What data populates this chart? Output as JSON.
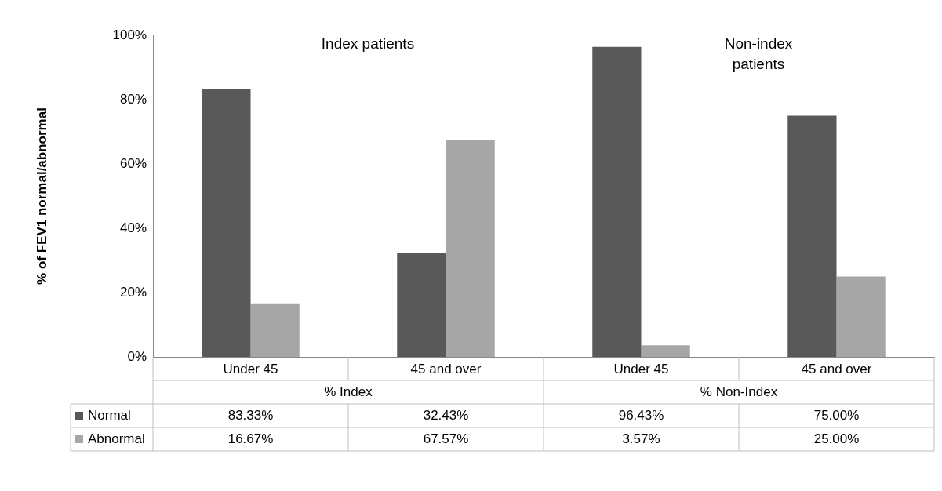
{
  "chart_data": {
    "type": "bar",
    "ylabel": "% of FEV1 normal/abnormal",
    "categories": [
      "Under 45",
      "45 and over",
      "Under 45",
      "45 and over"
    ],
    "series": [
      {
        "name": "Normal",
        "color": "#595959",
        "values": [
          83.33,
          32.43,
          96.43,
          75.0
        ],
        "value_labels": [
          "83.33%",
          "32.43%",
          "96.43%",
          "75.00%"
        ]
      },
      {
        "name": "Abnormal",
        "color": "#a6a6a6",
        "values": [
          16.67,
          67.57,
          3.57,
          25.0
        ],
        "value_labels": [
          "16.67%",
          "67.57%",
          "3.57%",
          "25.00%"
        ]
      }
    ],
    "ylim": [
      0,
      100
    ],
    "yticks": [
      {
        "value": 0,
        "label": "0%"
      },
      {
        "value": 20,
        "label": "20%"
      },
      {
        "value": 40,
        "label": "40%"
      },
      {
        "value": 60,
        "label": "60%"
      },
      {
        "value": 80,
        "label": "80%"
      },
      {
        "value": 100,
        "label": "100%"
      }
    ],
    "grid": false,
    "legend": "bottom",
    "annotations": [
      "% Index",
      "% Non-Index",
      "Index patients",
      "Non-index patients"
    ]
  }
}
